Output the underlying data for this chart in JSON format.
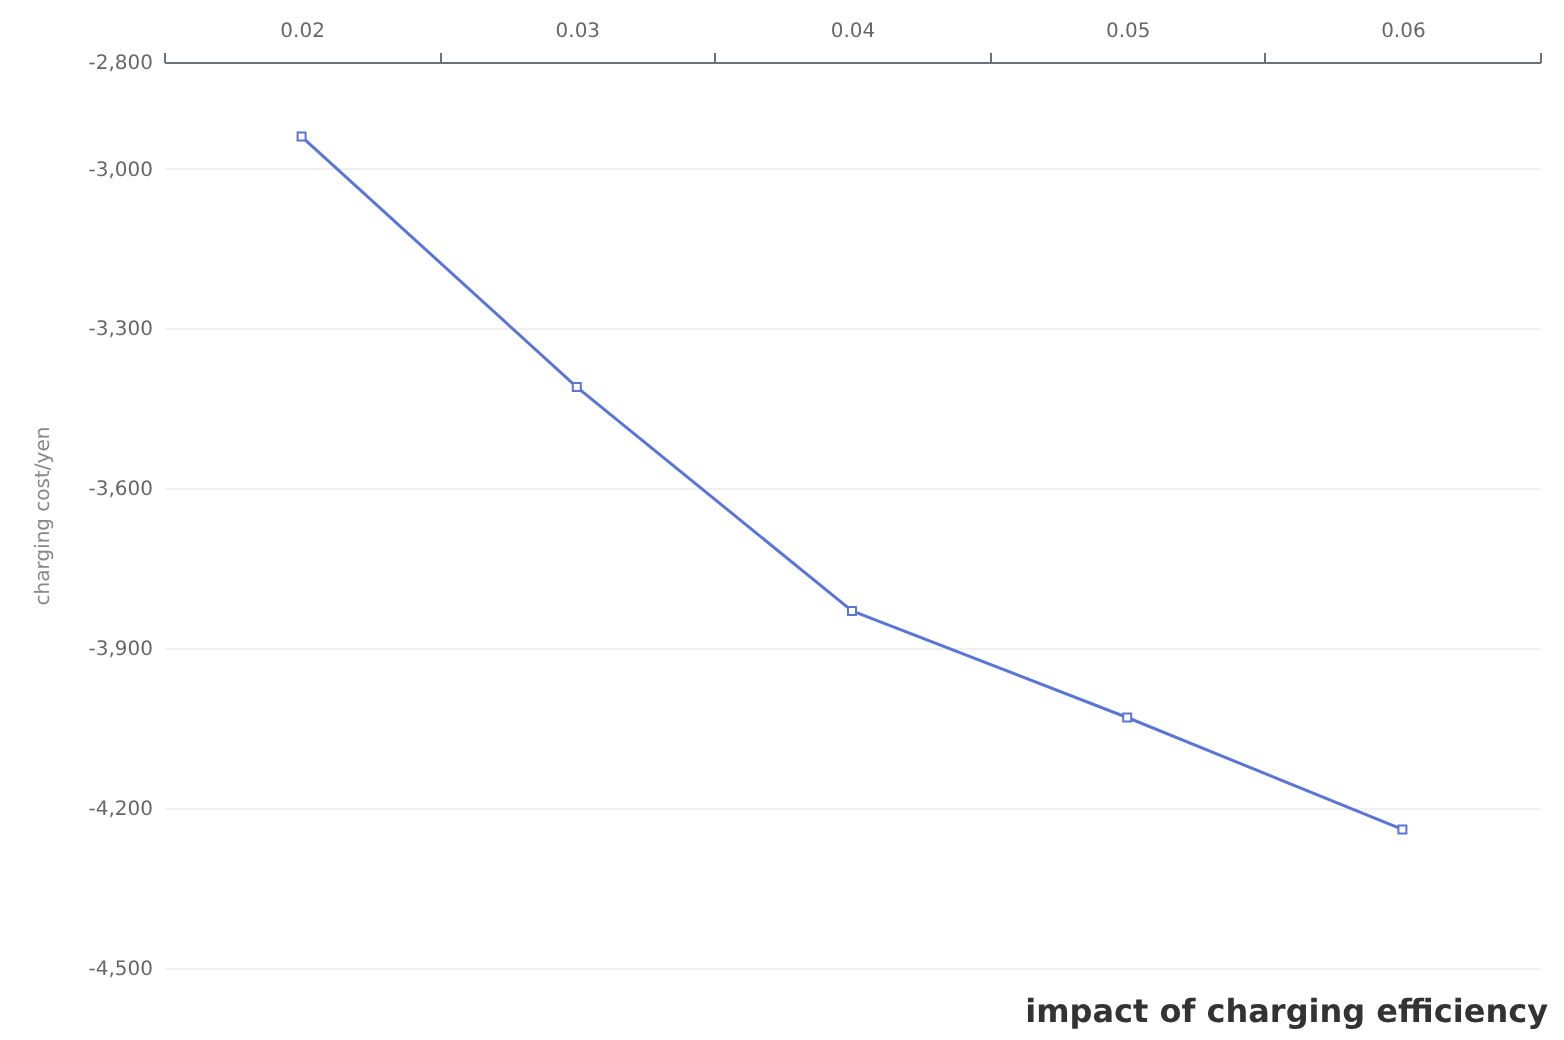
{
  "chart_data": {
    "type": "line",
    "xlabel": "impact of charging efficiency",
    "ylabel": "charging cost/yen",
    "categories": [
      "0.02",
      "0.03",
      "0.04",
      "0.05",
      "0.06"
    ],
    "series": [
      {
        "color": "#5b75d6",
        "values": [
          -2940,
          -3410,
          -3830,
          -4030,
          -4240
        ]
      }
    ],
    "ylim": [
      -4500,
      -2800
    ],
    "yticks": [
      {
        "value": -4500,
        "label": "-4,500"
      },
      {
        "value": -4200,
        "label": "-4,200"
      },
      {
        "value": -3900,
        "label": "-3,900"
      },
      {
        "value": -3600,
        "label": "-3,600"
      },
      {
        "value": -3300,
        "label": "-3,300"
      },
      {
        "value": -3000,
        "label": "-3,000"
      },
      {
        "value": -2800,
        "label": "-2,800"
      }
    ],
    "grid": "y",
    "marker": "square",
    "line_style": "solid"
  }
}
